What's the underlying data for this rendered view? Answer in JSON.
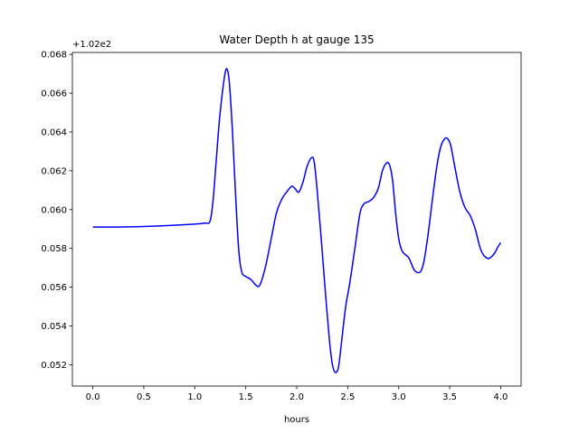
{
  "chart_data": {
    "type": "line",
    "title": "Water Depth h at gauge 135",
    "xlabel": "hours",
    "ylabel": "",
    "y_offset_label": "+1.02e2",
    "xlim": [
      -0.2,
      4.2
    ],
    "ylim": [
      0.0509,
      0.0681
    ],
    "x_ticks": [
      0.0,
      0.5,
      1.0,
      1.5,
      2.0,
      2.5,
      3.0,
      3.5,
      4.0
    ],
    "x_tick_labels": [
      "0.0",
      "0.5",
      "1.0",
      "1.5",
      "2.0",
      "2.5",
      "3.0",
      "3.5",
      "4.0"
    ],
    "y_ticks": [
      0.052,
      0.054,
      0.056,
      0.058,
      0.06,
      0.062,
      0.064,
      0.066,
      0.068
    ],
    "y_tick_labels": [
      "0.052",
      "0.054",
      "0.056",
      "0.058",
      "0.060",
      "0.062",
      "0.064",
      "0.066",
      "0.068"
    ],
    "grid": false,
    "series": [
      {
        "color": "#0000ff",
        "x": [
          0.0,
          0.25,
          0.5,
          0.75,
          1.0,
          1.1,
          1.15,
          1.18,
          1.21,
          1.24,
          1.27,
          1.3,
          1.32,
          1.34,
          1.37,
          1.4,
          1.43,
          1.46,
          1.5,
          1.55,
          1.6,
          1.63,
          1.66,
          1.7,
          1.75,
          1.8,
          1.85,
          1.9,
          1.95,
          1.98,
          2.02,
          2.06,
          2.1,
          2.14,
          2.17,
          2.2,
          2.24,
          2.28,
          2.32,
          2.35,
          2.38,
          2.41,
          2.44,
          2.48,
          2.52,
          2.57,
          2.62,
          2.66,
          2.7,
          2.75,
          2.8,
          2.84,
          2.88,
          2.91,
          2.94,
          2.97,
          3.0,
          3.03,
          3.06,
          3.1,
          3.15,
          3.19,
          3.22,
          3.25,
          3.29,
          3.33,
          3.37,
          3.41,
          3.45,
          3.48,
          3.51,
          3.55,
          3.6,
          3.65,
          3.7,
          3.75,
          3.8,
          3.84,
          3.88,
          3.91,
          3.94,
          3.97,
          4.0
        ],
        "y": [
          0.0591,
          0.0591,
          0.05913,
          0.05918,
          0.05925,
          0.0593,
          0.0594,
          0.0605,
          0.0625,
          0.0645,
          0.066,
          0.0671,
          0.0672,
          0.0665,
          0.064,
          0.0608,
          0.058,
          0.0568,
          0.05655,
          0.0564,
          0.0561,
          0.05605,
          0.0564,
          0.0572,
          0.0585,
          0.0598,
          0.0605,
          0.0609,
          0.0612,
          0.0611,
          0.0609,
          0.0614,
          0.0622,
          0.06265,
          0.0625,
          0.061,
          0.0585,
          0.0558,
          0.0533,
          0.052,
          0.0516,
          0.0519,
          0.0532,
          0.055,
          0.0562,
          0.058,
          0.0598,
          0.0603,
          0.0604,
          0.0606,
          0.0611,
          0.062,
          0.0624,
          0.0623,
          0.0615,
          0.0598,
          0.0585,
          0.0579,
          0.0577,
          0.0575,
          0.0569,
          0.05675,
          0.05685,
          0.0574,
          0.0588,
          0.0605,
          0.0621,
          0.0632,
          0.06365,
          0.06365,
          0.0633,
          0.0622,
          0.0609,
          0.0601,
          0.0597,
          0.059,
          0.058,
          0.0576,
          0.05748,
          0.05757,
          0.05775,
          0.05805,
          0.0583
        ]
      }
    ]
  }
}
